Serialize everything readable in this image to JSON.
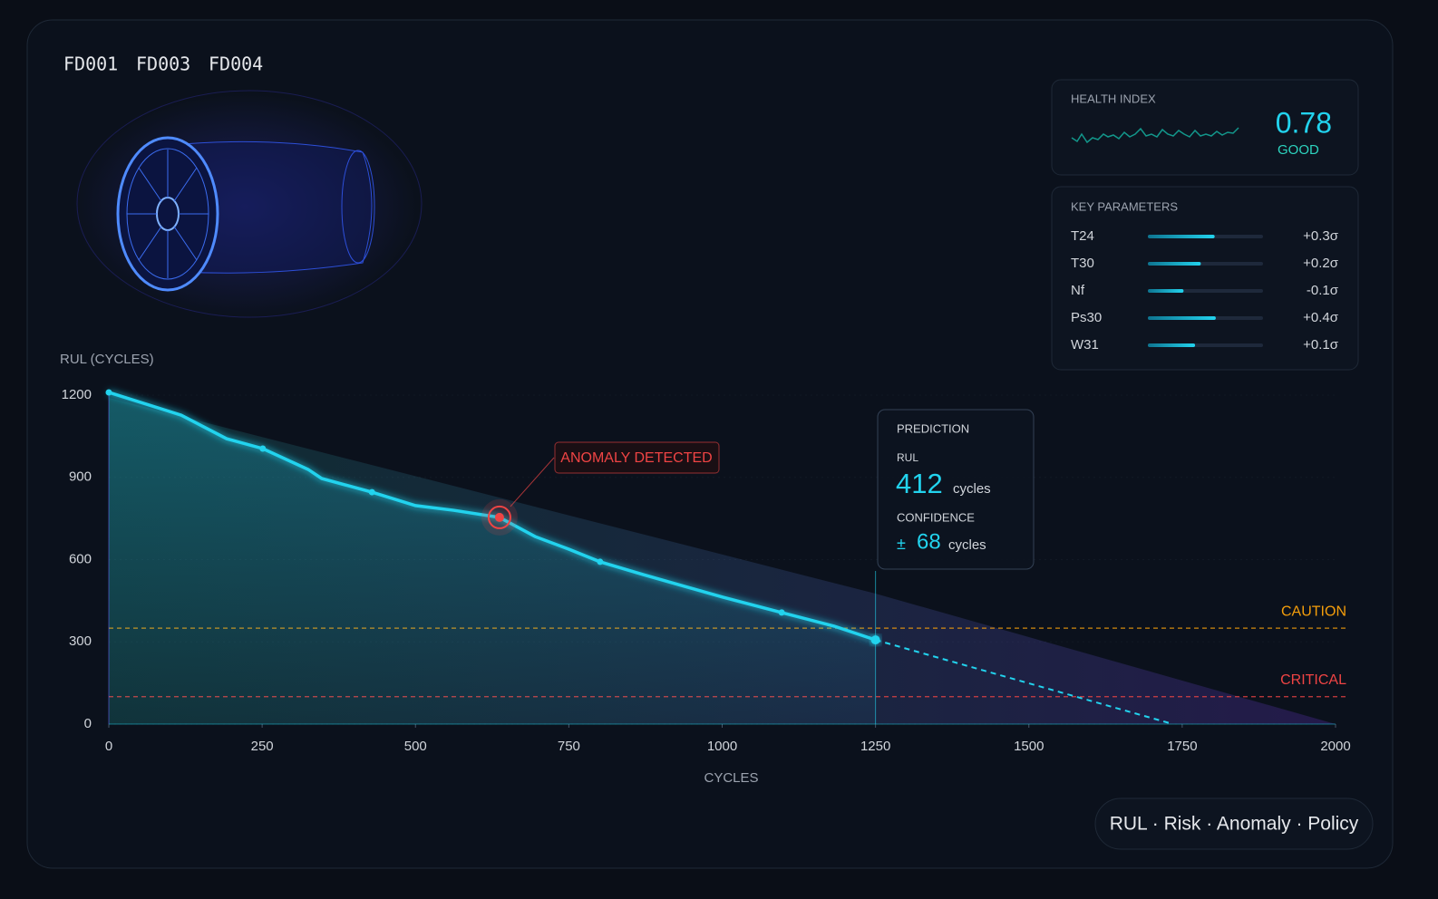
{
  "header": {
    "datasets": [
      "FD001",
      "FD003",
      "FD004"
    ]
  },
  "health_index": {
    "label": "HEALTH INDEX",
    "value": 0.78,
    "status": "GOOD"
  },
  "key_parameters": {
    "title": "KEY PARAMETERS",
    "items": [
      {
        "name": "T24",
        "value": 0.3,
        "value_label": "+0.3σ",
        "level": 0.58
      },
      {
        "name": "T30",
        "value": 0.2,
        "value_label": "+0.2σ",
        "level": 0.46
      },
      {
        "name": "Nf",
        "value": -0.1,
        "value_label": "-0.1σ",
        "level": 0.31
      },
      {
        "name": "Ps30",
        "value": 0.4,
        "value_label": "+0.4σ",
        "level": 0.59
      },
      {
        "name": "W31",
        "value": 0.1,
        "value_label": "+0.1σ",
        "level": 0.41
      }
    ]
  },
  "prediction": {
    "title": "PREDICTION",
    "rul_label": "RUL",
    "rul": 412,
    "rul_unit": "cycles",
    "confidence_label": "CONFIDENCE",
    "confidence_prefix": "±",
    "confidence": 68,
    "confidence_unit": "cycles"
  },
  "footer": {
    "modules": "RUL · Risk · Anomaly · Policy"
  },
  "chart_data": {
    "type": "line",
    "y_label": "RUL (CYCLES)",
    "x_label": "CYCLES",
    "xlim": [
      0,
      2000
    ],
    "ylim": [
      0,
      1200
    ],
    "xticks": [
      0,
      250,
      500,
      750,
      1000,
      1250,
      1500,
      1750,
      2000
    ],
    "yticks": [
      0,
      300,
      600,
      900,
      1200
    ],
    "series": [
      {
        "color": "#22d3ee",
        "dashed": false,
        "x": [
          0,
          118,
          192,
          251,
          325,
          347,
          429,
          500,
          562,
          637,
          695,
          750,
          801,
          872,
          1001,
          1097,
          1183,
          1250
        ],
        "values": [
          1210,
          1127,
          1041,
          1005,
          929,
          896,
          846,
          797,
          780,
          754,
          684,
          638,
          592,
          545,
          463,
          407,
          357,
          307
        ]
      },
      {
        "color": "#22d3ee",
        "dashed": true,
        "x": [
          1250,
          1735
        ],
        "values": [
          307,
          0
        ]
      }
    ],
    "band": {
      "x": [
        0,
        1250,
        2000
      ],
      "upper": [
        1190,
        476,
        0
      ]
    },
    "thresholds": [
      {
        "label": "CAUTION",
        "value": 350,
        "color": "#f59e0b"
      },
      {
        "label": "CRITICAL",
        "value": 100,
        "color": "#ef4444"
      }
    ],
    "anomaly": {
      "label": "ANOMALY DETECTED",
      "x": 637,
      "value": 754,
      "color": "#ef4444"
    },
    "current_x": 1250
  }
}
